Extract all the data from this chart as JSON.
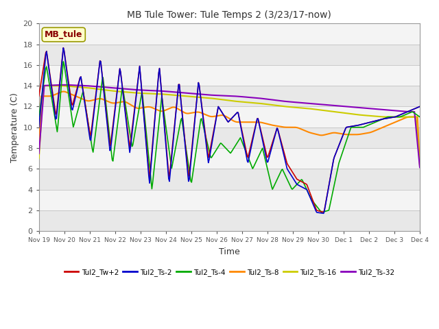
{
  "title": "MB Tule Tower: Tule Temps 2 (3/23/17-now)",
  "xlabel": "Time",
  "ylabel": "Temperature (C)",
  "ylim": [
    0,
    20
  ],
  "yticks": [
    0,
    2,
    4,
    6,
    8,
    10,
    12,
    14,
    16,
    18,
    20
  ],
  "legend_label": "MB_tule",
  "series_labels": [
    "Tul2_Tw+2",
    "Tul2_Ts-2",
    "Tul2_Ts-4",
    "Tul2_Ts-8",
    "Tul2_Ts-16",
    "Tul2_Ts-32"
  ],
  "series_colors": [
    "#cc0000",
    "#0000cc",
    "#00aa00",
    "#ff8800",
    "#cccc00",
    "#8800bb"
  ],
  "x_tick_labels": [
    "Nov 19",
    "Nov 20",
    "Nov 21",
    "Nov 22",
    "Nov 23",
    "Nov 24",
    "Nov 25",
    "Nov 26",
    "Nov 27",
    "Nov 28",
    "Nov 29",
    "Nov 30",
    "Dec 1",
    "Dec 2",
    "Dec 3",
    "Dec 4"
  ],
  "band_colors": [
    "#e8e8e8",
    "#f4f4f4"
  ],
  "red_x": [
    0,
    0.3,
    0.7,
    1.0,
    1.35,
    1.7,
    2.1,
    2.5,
    2.9,
    3.3,
    3.7,
    4.1,
    4.5,
    4.9,
    5.3,
    5.7,
    6.1,
    6.5,
    6.9,
    7.3,
    7.7,
    8.1,
    8.5,
    8.9,
    9.3,
    9.7,
    10.1,
    10.5,
    10.9,
    11.3,
    11.6,
    12.0,
    12.5,
    13.0,
    13.5,
    14.0,
    14.5,
    15.0,
    15.5
  ],
  "red_y": [
    13,
    17.5,
    11,
    17.8,
    12,
    15,
    9,
    16.7,
    8,
    15.8,
    8,
    15.9,
    5,
    15.9,
    5,
    14.5,
    5,
    14.5,
    7,
    12,
    10.5,
    11.5,
    7,
    11,
    7,
    10,
    6.5,
    5,
    4.5,
    2,
    1.8,
    7,
    10,
    10.2,
    10.5,
    10.8,
    11,
    11.5,
    12
  ],
  "blue_x": [
    0,
    0.3,
    0.7,
    1.0,
    1.35,
    1.7,
    2.1,
    2.5,
    2.9,
    3.3,
    3.7,
    4.1,
    4.5,
    4.9,
    5.3,
    5.7,
    6.1,
    6.5,
    6.9,
    7.3,
    7.7,
    8.1,
    8.5,
    8.9,
    9.3,
    9.7,
    10.1,
    10.5,
    10.9,
    11.3,
    11.6,
    12.0,
    12.5,
    13.0,
    13.5,
    14.0,
    14.5,
    15.0,
    15.5
  ],
  "blue_y": [
    10,
    17.5,
    10.5,
    17.8,
    11.5,
    15,
    8.5,
    16.7,
    7.5,
    15.8,
    7.5,
    15.9,
    4.5,
    15.9,
    4.5,
    14.5,
    4.5,
    14.5,
    6.5,
    12,
    10.5,
    11.5,
    6.5,
    11,
    6.5,
    10,
    6,
    4.5,
    4,
    1.8,
    1.7,
    7,
    10,
    10.2,
    10.5,
    10.8,
    11,
    11.5,
    12
  ],
  "green_x": [
    0,
    0.3,
    0.75,
    1.0,
    1.4,
    1.8,
    2.2,
    2.6,
    3.0,
    3.4,
    3.8,
    4.2,
    4.6,
    5.0,
    5.4,
    5.8,
    6.2,
    6.6,
    7.0,
    7.4,
    7.8,
    8.2,
    8.7,
    9.1,
    9.5,
    9.9,
    10.3,
    10.7,
    11.1,
    11.5,
    11.8,
    12.2,
    12.7,
    13.2,
    13.7,
    14.2,
    14.7,
    15.2,
    15.5
  ],
  "green_y": [
    11,
    16,
    9.5,
    16.5,
    10,
    13.5,
    7.5,
    15,
    6.5,
    14,
    8,
    13.5,
    4,
    13,
    6,
    11,
    4.5,
    11,
    7,
    8.5,
    7.5,
    9,
    6,
    8,
    4,
    6,
    4,
    5,
    3,
    1.8,
    2,
    6.5,
    10,
    10,
    10.5,
    11,
    11,
    11.5,
    11
  ],
  "orange_x": [
    0,
    0.5,
    1.0,
    1.5,
    2.0,
    2.5,
    3.0,
    3.5,
    4.0,
    4.5,
    5.0,
    5.5,
    6.0,
    6.5,
    7.0,
    7.5,
    8.0,
    8.5,
    9.0,
    9.5,
    10.0,
    10.5,
    11.0,
    11.5,
    12.0,
    12.5,
    13.0,
    13.5,
    14.0,
    14.5,
    15.0,
    15.5
  ],
  "orange_y": [
    13,
    13,
    13.5,
    13,
    12.5,
    12.8,
    12.3,
    12.5,
    11.8,
    12,
    11.5,
    12,
    11.3,
    11.5,
    11,
    11.2,
    10.5,
    10.5,
    10.5,
    10.2,
    10,
    10,
    9.5,
    9.2,
    9.5,
    9.3,
    9.3,
    9.5,
    10,
    10.5,
    11,
    11
  ],
  "yellow_x": [
    0,
    1,
    2,
    3,
    4,
    5,
    6,
    7,
    8,
    9,
    10,
    11,
    12,
    13,
    14,
    15,
    15.5
  ],
  "yellow_y": [
    14,
    14,
    13.8,
    13.5,
    13.3,
    13.2,
    13,
    12.8,
    12.5,
    12.3,
    12,
    11.8,
    11.5,
    11.2,
    11,
    11,
    11
  ],
  "purple_x": [
    0,
    1,
    2,
    3,
    4,
    5,
    6,
    7,
    8,
    9,
    10,
    11,
    12,
    13,
    14,
    15,
    15.5
  ],
  "purple_y": [
    14,
    14.1,
    14,
    13.8,
    13.6,
    13.5,
    13.3,
    13.1,
    13,
    12.8,
    12.5,
    12.3,
    12.1,
    11.9,
    11.7,
    11.5,
    11.5
  ]
}
